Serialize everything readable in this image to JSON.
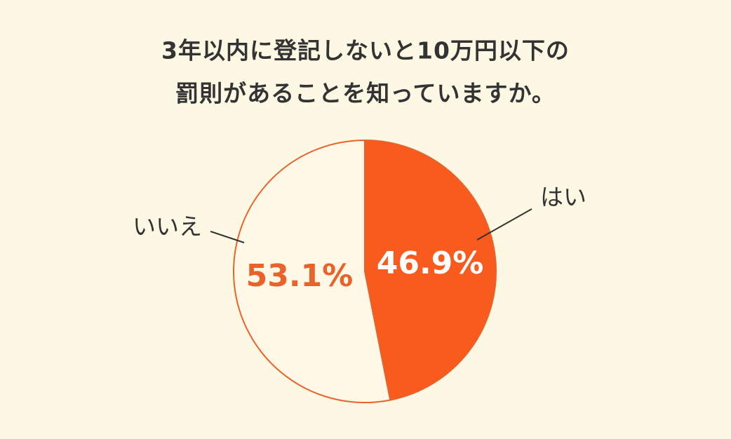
{
  "chart_data": {
    "type": "pie",
    "title": [
      "3年以内に登記しないと10万円以下の",
      "罰則があることを知っていますか。"
    ],
    "categories": [
      "はい",
      "いいえ"
    ],
    "values": [
      46.9,
      53.1
    ],
    "value_labels": [
      "46.9%",
      "53.1%"
    ],
    "colors": [
      "#f95a1e",
      "#fff8e6"
    ],
    "label_colors": [
      "#ffffff",
      "#e8622a"
    ],
    "edge_color": "#e8632a"
  }
}
